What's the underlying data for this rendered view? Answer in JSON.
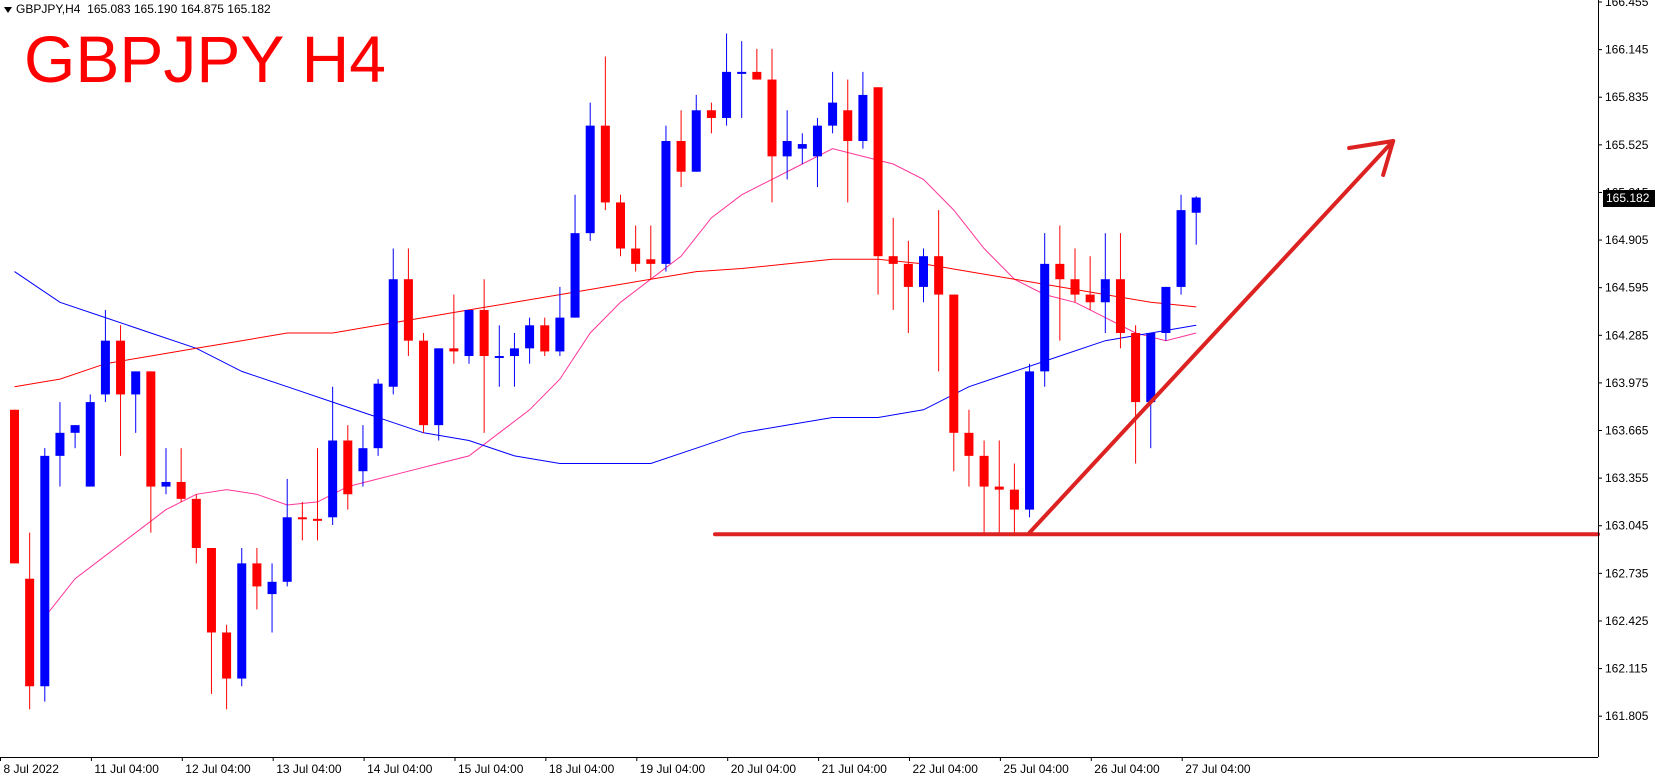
{
  "header": {
    "symbol": "GBPJPY,H4",
    "ohlc": "165.083 165.190 164.875 165.182"
  },
  "title_overlay": "GBPJPY H4",
  "last_price": "165.182",
  "colors": {
    "bull": "#0000ff",
    "bear": "#ff0000",
    "ma_fast": "#ff3399",
    "ma_mid": "#0000ff",
    "ma_slow": "#ff0000",
    "annotation": "#dd2222",
    "axis": "#000000"
  },
  "chart_data": {
    "type": "candlestick",
    "instrument": "GBPJPY",
    "timeframe": "H4",
    "ylim": [
      161.65,
      166.455
    ],
    "y_ticks": [
      "166.455",
      "166.145",
      "165.835",
      "165.525",
      "165.215",
      "164.905",
      "164.595",
      "164.285",
      "163.975",
      "163.665",
      "163.355",
      "163.045",
      "162.735",
      "162.425",
      "162.115",
      "161.805"
    ],
    "x_ticks": [
      {
        "label": "8 Jul 2022",
        "bar": 0
      },
      {
        "label": "11 Jul 04:00",
        "bar": 6
      },
      {
        "label": "12 Jul 04:00",
        "bar": 12
      },
      {
        "label": "13 Jul 04:00",
        "bar": 18
      },
      {
        "label": "14 Jul 04:00",
        "bar": 24
      },
      {
        "label": "15 Jul 04:00",
        "bar": 30
      },
      {
        "label": "18 Jul 04:00",
        "bar": 36
      },
      {
        "label": "19 Jul 04:00",
        "bar": 42
      },
      {
        "label": "20 Jul 04:00",
        "bar": 48
      },
      {
        "label": "21 Jul 04:00",
        "bar": 54
      },
      {
        "label": "22 Jul 04:00",
        "bar": 60
      },
      {
        "label": "25 Jul 04:00",
        "bar": 66
      },
      {
        "label": "26 Jul 04:00",
        "bar": 72
      },
      {
        "label": "27 Jul 04:00",
        "bar": 78
      }
    ],
    "candles": [
      {
        "o": 163.8,
        "h": 163.8,
        "l": 162.8,
        "c": 162.8
      },
      {
        "o": 162.7,
        "h": 163.0,
        "l": 161.85,
        "c": 162.0
      },
      {
        "o": 162.0,
        "h": 163.55,
        "l": 161.9,
        "c": 163.5
      },
      {
        "o": 163.5,
        "h": 163.85,
        "l": 163.3,
        "c": 163.65
      },
      {
        "o": 163.65,
        "h": 163.7,
        "l": 163.55,
        "c": 163.7
      },
      {
        "o": 163.3,
        "h": 163.9,
        "l": 163.3,
        "c": 163.85
      },
      {
        "o": 163.9,
        "h": 164.45,
        "l": 163.85,
        "c": 164.25
      },
      {
        "o": 164.25,
        "h": 164.35,
        "l": 163.5,
        "c": 163.9
      },
      {
        "o": 163.9,
        "h": 164.05,
        "l": 163.65,
        "c": 164.05
      },
      {
        "o": 164.05,
        "h": 164.05,
        "l": 163.0,
        "c": 163.3
      },
      {
        "o": 163.3,
        "h": 163.55,
        "l": 163.25,
        "c": 163.33
      },
      {
        "o": 163.33,
        "h": 163.55,
        "l": 163.2,
        "c": 163.22
      },
      {
        "o": 163.22,
        "h": 163.25,
        "l": 162.8,
        "c": 162.9
      },
      {
        "o": 162.9,
        "h": 162.9,
        "l": 161.95,
        "c": 162.35
      },
      {
        "o": 162.35,
        "h": 162.4,
        "l": 161.85,
        "c": 162.05
      },
      {
        "o": 162.05,
        "h": 162.9,
        "l": 162.0,
        "c": 162.8
      },
      {
        "o": 162.8,
        "h": 162.9,
        "l": 162.5,
        "c": 162.65
      },
      {
        "o": 162.6,
        "h": 162.8,
        "l": 162.35,
        "c": 162.68
      },
      {
        "o": 162.68,
        "h": 163.35,
        "l": 162.65,
        "c": 163.1
      },
      {
        "o": 163.1,
        "h": 163.2,
        "l": 162.95,
        "c": 163.09
      },
      {
        "o": 163.09,
        "h": 163.55,
        "l": 162.95,
        "c": 163.08
      },
      {
        "o": 163.1,
        "h": 163.95,
        "l": 163.05,
        "c": 163.6
      },
      {
        "o": 163.6,
        "h": 163.7,
        "l": 163.15,
        "c": 163.25
      },
      {
        "o": 163.4,
        "h": 163.7,
        "l": 163.3,
        "c": 163.55
      },
      {
        "o": 163.55,
        "h": 164.0,
        "l": 163.5,
        "c": 163.97
      },
      {
        "o": 163.95,
        "h": 164.85,
        "l": 163.9,
        "c": 164.65
      },
      {
        "o": 164.65,
        "h": 164.85,
        "l": 164.15,
        "c": 164.25
      },
      {
        "o": 164.25,
        "h": 164.3,
        "l": 163.65,
        "c": 163.7
      },
      {
        "o": 163.7,
        "h": 164.2,
        "l": 163.6,
        "c": 164.2
      },
      {
        "o": 164.2,
        "h": 164.55,
        "l": 164.1,
        "c": 164.18
      },
      {
        "o": 164.15,
        "h": 164.45,
        "l": 164.1,
        "c": 164.45
      },
      {
        "o": 164.45,
        "h": 164.65,
        "l": 163.65,
        "c": 164.15
      },
      {
        "o": 164.15,
        "h": 164.35,
        "l": 163.95,
        "c": 164.15
      },
      {
        "o": 164.15,
        "h": 164.3,
        "l": 163.95,
        "c": 164.2
      },
      {
        "o": 164.2,
        "h": 164.4,
        "l": 164.1,
        "c": 164.35
      },
      {
        "o": 164.35,
        "h": 164.4,
        "l": 164.15,
        "c": 164.18
      },
      {
        "o": 164.18,
        "h": 164.6,
        "l": 164.15,
        "c": 164.4
      },
      {
        "o": 164.4,
        "h": 165.2,
        "l": 164.4,
        "c": 164.95
      },
      {
        "o": 164.95,
        "h": 165.8,
        "l": 164.9,
        "c": 165.65
      },
      {
        "o": 165.65,
        "h": 166.1,
        "l": 165.1,
        "c": 165.15
      },
      {
        "o": 165.15,
        "h": 165.2,
        "l": 164.8,
        "c": 164.85
      },
      {
        "o": 164.85,
        "h": 165.0,
        "l": 164.7,
        "c": 164.75
      },
      {
        "o": 164.78,
        "h": 165.0,
        "l": 164.65,
        "c": 164.75
      },
      {
        "o": 164.75,
        "h": 165.65,
        "l": 164.7,
        "c": 165.55
      },
      {
        "o": 165.55,
        "h": 165.75,
        "l": 165.25,
        "c": 165.35
      },
      {
        "o": 165.35,
        "h": 165.85,
        "l": 165.35,
        "c": 165.75
      },
      {
        "o": 165.75,
        "h": 165.8,
        "l": 165.6,
        "c": 165.7
      },
      {
        "o": 165.7,
        "h": 166.25,
        "l": 165.65,
        "c": 166.0
      },
      {
        "o": 166.0,
        "h": 166.2,
        "l": 165.7,
        "c": 166.0
      },
      {
        "o": 166.0,
        "h": 166.15,
        "l": 165.95,
        "c": 165.95
      },
      {
        "o": 165.95,
        "h": 166.15,
        "l": 165.15,
        "c": 165.45
      },
      {
        "o": 165.45,
        "h": 165.75,
        "l": 165.3,
        "c": 165.55
      },
      {
        "o": 165.5,
        "h": 165.6,
        "l": 165.4,
        "c": 165.53
      },
      {
        "o": 165.45,
        "h": 165.7,
        "l": 165.25,
        "c": 165.65
      },
      {
        "o": 165.65,
        "h": 166.0,
        "l": 165.6,
        "c": 165.8
      },
      {
        "o": 165.75,
        "h": 165.95,
        "l": 165.15,
        "c": 165.55
      },
      {
        "o": 165.55,
        "h": 166.0,
        "l": 165.5,
        "c": 165.85
      },
      {
        "o": 165.9,
        "h": 165.9,
        "l": 164.55,
        "c": 164.8
      },
      {
        "o": 164.8,
        "h": 165.05,
        "l": 164.45,
        "c": 164.75
      },
      {
        "o": 164.75,
        "h": 164.9,
        "l": 164.3,
        "c": 164.6
      },
      {
        "o": 164.6,
        "h": 164.85,
        "l": 164.5,
        "c": 164.8
      },
      {
        "o": 164.8,
        "h": 165.1,
        "l": 164.05,
        "c": 164.55
      },
      {
        "o": 164.55,
        "h": 164.55,
        "l": 163.4,
        "c": 163.65
      },
      {
        "o": 163.65,
        "h": 163.8,
        "l": 163.3,
        "c": 163.5
      },
      {
        "o": 163.5,
        "h": 163.6,
        "l": 163.0,
        "c": 163.3
      },
      {
        "o": 163.3,
        "h": 163.6,
        "l": 163.0,
        "c": 163.28
      },
      {
        "o": 163.28,
        "h": 163.45,
        "l": 163.0,
        "c": 163.15
      },
      {
        "o": 163.15,
        "h": 164.1,
        "l": 163.1,
        "c": 164.05
      },
      {
        "o": 164.05,
        "h": 164.95,
        "l": 163.95,
        "c": 164.75
      },
      {
        "o": 164.75,
        "h": 165.0,
        "l": 164.25,
        "c": 164.65
      },
      {
        "o": 164.65,
        "h": 164.85,
        "l": 164.5,
        "c": 164.55
      },
      {
        "o": 164.55,
        "h": 164.8,
        "l": 164.45,
        "c": 164.5
      },
      {
        "o": 164.5,
        "h": 164.95,
        "l": 164.3,
        "c": 164.65
      },
      {
        "o": 164.65,
        "h": 164.95,
        "l": 164.2,
        "c": 164.3
      },
      {
        "o": 164.3,
        "h": 164.35,
        "l": 163.45,
        "c": 163.85
      },
      {
        "o": 163.85,
        "h": 164.3,
        "l": 163.55,
        "c": 164.3
      },
      {
        "o": 164.3,
        "h": 164.6,
        "l": 164.25,
        "c": 164.6
      },
      {
        "o": 164.6,
        "h": 165.2,
        "l": 164.55,
        "c": 165.1
      },
      {
        "o": 165.083,
        "h": 165.19,
        "l": 164.875,
        "c": 165.182
      }
    ],
    "moving_averages": [
      {
        "color": "#ff3399",
        "points": [
          [
            2,
            162.45
          ],
          [
            4,
            162.7
          ],
          [
            6,
            162.85
          ],
          [
            8,
            163.0
          ],
          [
            10,
            163.15
          ],
          [
            12,
            163.25
          ],
          [
            14,
            163.28
          ],
          [
            16,
            163.25
          ],
          [
            18,
            163.18
          ],
          [
            20,
            163.2
          ],
          [
            22,
            163.3
          ],
          [
            24,
            163.35
          ],
          [
            26,
            163.4
          ],
          [
            28,
            163.45
          ],
          [
            30,
            163.5
          ],
          [
            32,
            163.65
          ],
          [
            34,
            163.8
          ],
          [
            36,
            164.0
          ],
          [
            38,
            164.3
          ],
          [
            40,
            164.5
          ],
          [
            42,
            164.65
          ],
          [
            44,
            164.8
          ],
          [
            46,
            165.05
          ],
          [
            48,
            165.2
          ],
          [
            50,
            165.3
          ],
          [
            52,
            165.4
          ],
          [
            54,
            165.5
          ],
          [
            56,
            165.45
          ],
          [
            58,
            165.4
          ],
          [
            60,
            165.3
          ],
          [
            62,
            165.1
          ],
          [
            64,
            164.85
          ],
          [
            66,
            164.65
          ],
          [
            68,
            164.55
          ],
          [
            70,
            164.5
          ],
          [
            72,
            164.4
          ],
          [
            74,
            164.3
          ],
          [
            76,
            164.25
          ],
          [
            78,
            164.3
          ]
        ]
      },
      {
        "color": "#0000ff",
        "points": [
          [
            0,
            164.7
          ],
          [
            3,
            164.5
          ],
          [
            6,
            164.4
          ],
          [
            9,
            164.3
          ],
          [
            12,
            164.2
          ],
          [
            15,
            164.05
          ],
          [
            18,
            163.95
          ],
          [
            21,
            163.85
          ],
          [
            24,
            163.75
          ],
          [
            27,
            163.65
          ],
          [
            30,
            163.6
          ],
          [
            33,
            163.5
          ],
          [
            36,
            163.45
          ],
          [
            39,
            163.45
          ],
          [
            42,
            163.45
          ],
          [
            45,
            163.55
          ],
          [
            48,
            163.65
          ],
          [
            51,
            163.7
          ],
          [
            54,
            163.75
          ],
          [
            57,
            163.75
          ],
          [
            60,
            163.8
          ],
          [
            63,
            163.95
          ],
          [
            66,
            164.05
          ],
          [
            69,
            164.15
          ],
          [
            72,
            164.25
          ],
          [
            75,
            164.3
          ],
          [
            78,
            164.35
          ]
        ]
      },
      {
        "color": "#ff0000",
        "points": [
          [
            0,
            163.95
          ],
          [
            3,
            164.0
          ],
          [
            6,
            164.1
          ],
          [
            9,
            164.15
          ],
          [
            12,
            164.2
          ],
          [
            15,
            164.25
          ],
          [
            18,
            164.3
          ],
          [
            21,
            164.3
          ],
          [
            24,
            164.35
          ],
          [
            27,
            164.4
          ],
          [
            30,
            164.45
          ],
          [
            33,
            164.5
          ],
          [
            36,
            164.55
          ],
          [
            39,
            164.6
          ],
          [
            42,
            164.65
          ],
          [
            45,
            164.7
          ],
          [
            48,
            164.72
          ],
          [
            51,
            164.75
          ],
          [
            54,
            164.78
          ],
          [
            57,
            164.78
          ],
          [
            60,
            164.75
          ],
          [
            63,
            164.7
          ],
          [
            66,
            164.65
          ],
          [
            69,
            164.6
          ],
          [
            72,
            164.55
          ],
          [
            75,
            164.5
          ],
          [
            78,
            164.47
          ]
        ]
      }
    ],
    "annotations": {
      "support_level": 162.99,
      "trend_arrow": {
        "from": {
          "bar": 67,
          "price": 163.0
        },
        "to": {
          "bar": 91,
          "price": 165.55
        }
      }
    }
  }
}
